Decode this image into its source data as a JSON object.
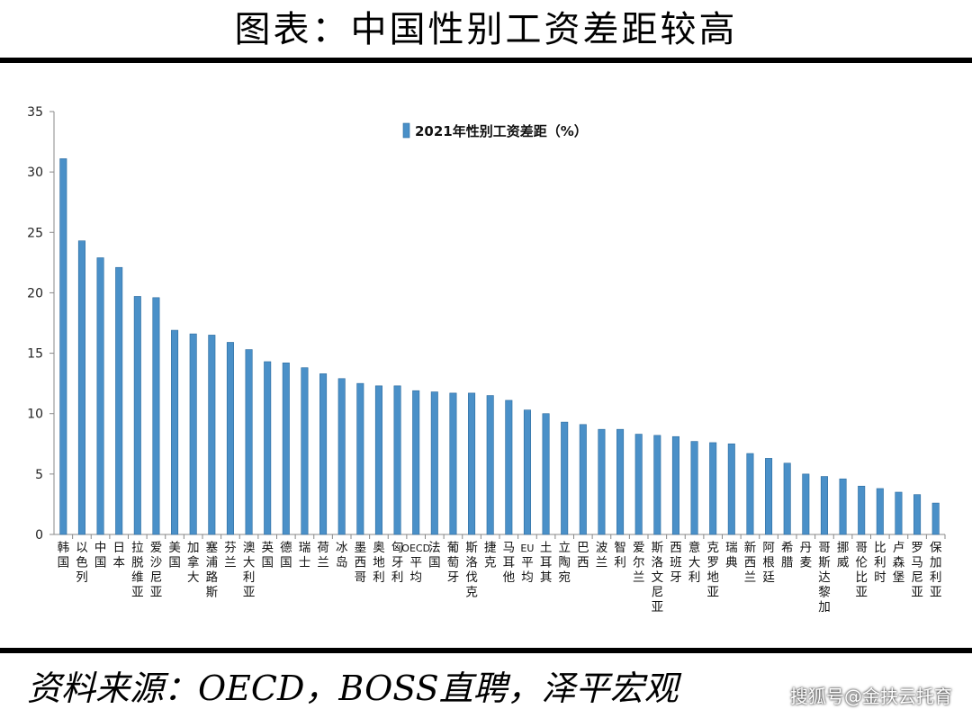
{
  "header": {
    "title": "图表：中国性别工资差距较高"
  },
  "footer": {
    "source": "资料来源：OECD，BOSS直聘，泽平宏观"
  },
  "watermark": {
    "text": "搜狐号@金扶云托育"
  },
  "colors": {
    "bar": "#4a90c8",
    "bar_edge": "#2a6a9e",
    "axis": "#888888",
    "rule": "#000000"
  },
  "chart_data": {
    "type": "bar",
    "title": "",
    "xlabel": "",
    "ylabel": "",
    "ylim": [
      0,
      35
    ],
    "yticks": [
      0,
      5,
      10,
      15,
      20,
      25,
      30,
      35
    ],
    "grid": false,
    "legend_position": "top-center",
    "categories": [
      "韩国",
      "以色列",
      "中国",
      "日本",
      "拉脱维亚",
      "爱沙尼亚",
      "美国",
      "加拿大",
      "塞浦路斯",
      "芬兰",
      "澳大利亚",
      "英国",
      "德国",
      "瑞士",
      "荷兰",
      "冰岛",
      "墨西哥",
      "奥地利",
      "匈牙利",
      "OECD平均",
      "法国",
      "葡萄牙",
      "斯洛伐克",
      "捷克",
      "马耳他",
      "EU平均",
      "土耳其",
      "立陶宛",
      "巴西",
      "波兰",
      "智利",
      "爱尔兰",
      "斯洛文尼亚",
      "西班牙",
      "意大利",
      "克罗地亚",
      "瑞典",
      "新西兰",
      "阿根廷",
      "希腊",
      "丹麦",
      "哥斯达黎加",
      "挪威",
      "哥伦比亚",
      "比利时",
      "卢森堡",
      "罗马尼亚",
      "保加利亚"
    ],
    "series": [
      {
        "name": "2021年性别工资差距（%）",
        "values": [
          31.1,
          24.3,
          22.9,
          22.1,
          19.7,
          19.6,
          16.9,
          16.6,
          16.5,
          15.9,
          15.3,
          14.3,
          14.2,
          13.8,
          13.3,
          12.9,
          12.5,
          12.3,
          12.3,
          11.9,
          11.8,
          11.7,
          11.7,
          11.5,
          11.1,
          10.3,
          10.0,
          9.3,
          9.1,
          8.7,
          8.7,
          8.3,
          8.2,
          8.1,
          7.7,
          7.6,
          7.5,
          6.7,
          6.3,
          5.9,
          5.0,
          4.8,
          4.6,
          4.0,
          3.8,
          3.5,
          3.3,
          2.6
        ]
      }
    ]
  }
}
